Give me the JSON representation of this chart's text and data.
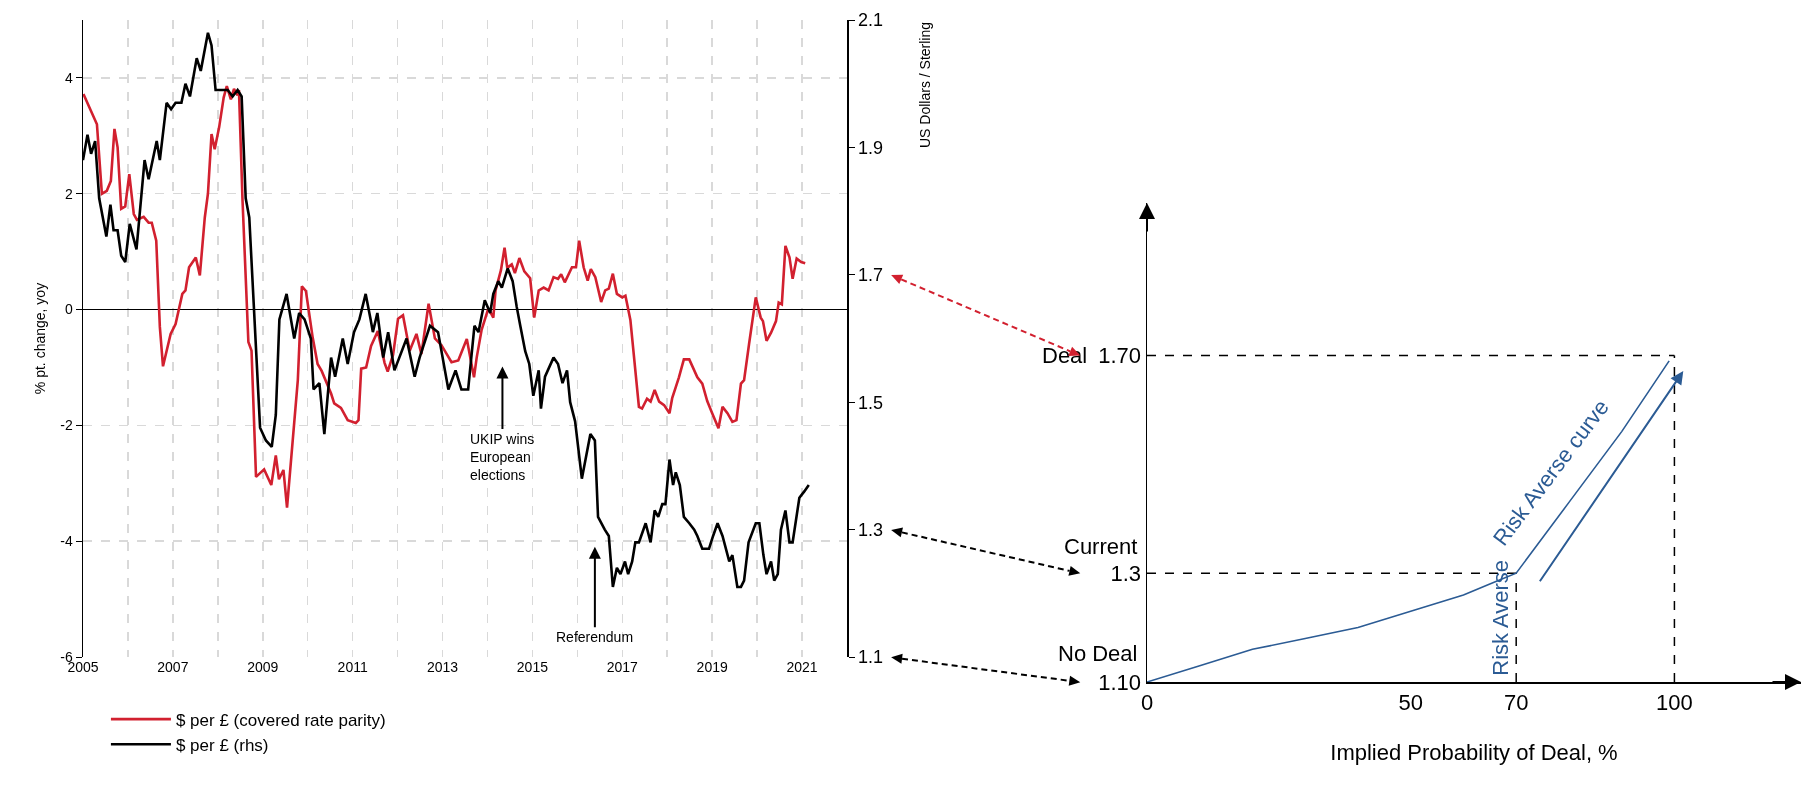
{
  "chart_data": [
    {
      "type": "line",
      "ylabel": "% pt. change, yoy",
      "y2label": "US Dollars / Sterling",
      "xlim": [
        2005,
        2022
      ],
      "xticks": [
        2005,
        {
          "value": 2006,
          "label": null
        },
        2007,
        {
          "value": 2008,
          "label": null
        },
        2009,
        {
          "value": 2010,
          "label": null
        },
        2011,
        {
          "value": 2012,
          "label": null
        },
        2013,
        {
          "value": 2014,
          "label": null
        },
        2015,
        {
          "value": 2016,
          "label": null
        },
        2017,
        {
          "value": 2018,
          "label": null
        },
        2019,
        {
          "value": 2020,
          "label": null
        },
        2021
      ],
      "ylim": [
        -6,
        5
      ],
      "yticks": [
        -6,
        -4,
        -2,
        0,
        2,
        4
      ],
      "y2lim": [
        1.1,
        2.1
      ],
      "y2ticks": [
        1.1,
        1.3,
        1.5,
        1.7,
        1.9,
        2.1
      ],
      "grid": true,
      "legend": "bottom",
      "series": [
        {
          "name": "$ per £ (covered rate parity)",
          "color": "#d2202f",
          "x": [
            2005.01,
            2005.31,
            2005.42,
            2005.53,
            2005.62,
            2005.7,
            2005.77,
            2005.85,
            2005.94,
            2006.03,
            2006.13,
            2006.2,
            2006.35,
            2006.46,
            2006.53,
            2006.63,
            2006.71,
            2006.78,
            2006.95,
            2007.06,
            2007.21,
            2007.28,
            2007.36,
            2007.51,
            2007.6,
            2007.71,
            2007.78,
            2007.86,
            2007.93,
            2008.03,
            2008.13,
            2008.2,
            2008.29,
            2008.36,
            2008.44,
            2008.47,
            2008.55,
            2008.68,
            2008.75,
            2008.85,
            2009.03,
            2009.19,
            2009.29,
            2009.36,
            2009.46,
            2009.54,
            2009.78,
            2009.87,
            2009.96,
            2010.11,
            2010.22,
            2010.31,
            2010.52,
            2010.59,
            2010.74,
            2010.89,
            2011.07,
            2011.13,
            2011.19,
            2011.3,
            2011.41,
            2011.56,
            2011.71,
            2011.78,
            2011.9,
            2012.01,
            2012.12,
            2012.27,
            2012.42,
            2012.53,
            2012.69,
            2012.83,
            2012.98,
            2013.2,
            2013.35,
            2013.54,
            2013.7,
            2013.76,
            2013.87,
            2014.02,
            2014.13,
            2014.18,
            2014.3,
            2014.38,
            2014.44,
            2014.54,
            2014.61,
            2014.71,
            2014.82,
            2014.95,
            2015.04,
            2015.14,
            2015.25,
            2015.36,
            2015.47,
            2015.57,
            2015.64,
            2015.72,
            2015.88,
            2015.97,
            2016.04,
            2016.14,
            2016.23,
            2016.3,
            2016.4,
            2016.53,
            2016.62,
            2016.7,
            2016.79,
            2016.88,
            2017.0,
            2017.07,
            2017.18,
            2017.37,
            2017.44,
            2017.55,
            2017.63,
            2017.72,
            2017.82,
            2017.93,
            2018.05,
            2018.11,
            2018.19,
            2018.26,
            2018.37,
            2018.49,
            2018.67,
            2018.78,
            2018.89,
            2019.0,
            2019.14,
            2019.23,
            2019.34,
            2019.45,
            2019.54,
            2019.64,
            2019.71,
            2019.82,
            2019.97,
            2020.08,
            2020.13,
            2020.21,
            2020.31,
            2020.42,
            2020.48,
            2020.55,
            2020.63,
            2020.72,
            2020.79,
            2020.88,
            2020.98,
            2021.07
          ],
          "values": [
            3.72,
            3.2,
            2.0,
            2.05,
            2.22,
            3.12,
            2.8,
            1.74,
            1.78,
            2.34,
            1.65,
            1.55,
            1.6,
            1.5,
            1.5,
            1.19,
            -0.3,
            -0.98,
            -0.42,
            -0.25,
            0.27,
            0.33,
            0.73,
            0.9,
            0.59,
            1.59,
            2.0,
            3.03,
            2.77,
            3.15,
            3.66,
            3.86,
            3.63,
            3.81,
            3.7,
            3.79,
            1.88,
            -0.56,
            -0.71,
            -2.89,
            -2.76,
            -3.03,
            -2.52,
            -2.93,
            -2.77,
            -3.42,
            -1.22,
            0.4,
            0.32,
            -0.48,
            -0.94,
            -1.06,
            -1.45,
            -1.62,
            -1.7,
            -1.91,
            -1.96,
            -1.91,
            -1.02,
            -1.0,
            -0.63,
            -0.37,
            -0.92,
            -1.07,
            -0.78,
            -0.16,
            -0.1,
            -0.71,
            -0.42,
            -0.77,
            0.1,
            -0.5,
            -0.62,
            -0.91,
            -0.88,
            -0.51,
            -1.17,
            -0.83,
            -0.35,
            0.02,
            -0.14,
            0.33,
            0.68,
            1.07,
            0.72,
            0.78,
            0.63,
            0.89,
            0.66,
            0.54,
            -0.14,
            0.33,
            0.38,
            0.33,
            0.56,
            0.53,
            0.61,
            0.47,
            0.73,
            0.73,
            1.19,
            0.73,
            0.5,
            0.7,
            0.56,
            0.13,
            0.33,
            0.36,
            0.62,
            0.27,
            0.21,
            0.24,
            -0.18,
            -1.68,
            -1.71,
            -1.54,
            -1.59,
            -1.39,
            -1.59,
            -1.65,
            -1.79,
            -1.53,
            -1.34,
            -1.17,
            -0.86,
            -0.86,
            -1.17,
            -1.28,
            -1.58,
            -1.79,
            -2.05,
            -1.68,
            -1.79,
            -1.94,
            -1.91,
            -1.28,
            -1.22,
            -0.6,
            0.21,
            -0.14,
            -0.2,
            -0.54,
            -0.4,
            -0.2,
            0.12,
            0.09,
            1.1,
            0.9,
            0.53,
            0.88,
            0.82,
            0.8
          ]
        },
        {
          "name": "$ per £ (rhs)",
          "color": "#000000",
          "axis": "y2",
          "x": [
            2005.0,
            2005.1,
            2005.18,
            2005.27,
            2005.36,
            2005.52,
            2005.61,
            2005.68,
            2005.77,
            2005.85,
            2005.94,
            2006.04,
            2006.19,
            2006.37,
            2006.46,
            2006.64,
            2006.71,
            2006.86,
            2006.96,
            2007.06,
            2007.19,
            2007.28,
            2007.38,
            2007.53,
            2007.62,
            2007.78,
            2007.86,
            2007.95,
            2008.03,
            2008.22,
            2008.33,
            2008.44,
            2008.53,
            2008.62,
            2008.7,
            2008.94,
            2009.07,
            2009.2,
            2009.29,
            2009.37,
            2009.53,
            2009.7,
            2009.81,
            2009.93,
            2010.07,
            2010.13,
            2010.26,
            2010.37,
            2010.52,
            2010.61,
            2010.78,
            2010.89,
            2011.03,
            2011.15,
            2011.29,
            2011.4,
            2011.45,
            2011.55,
            2011.68,
            2011.79,
            2011.93,
            2012.2,
            2012.38,
            2012.49,
            2012.72,
            2012.9,
            2013.13,
            2013.29,
            2013.42,
            2013.57,
            2013.71,
            2013.8,
            2013.94,
            2014.06,
            2014.13,
            2014.24,
            2014.32,
            2014.45,
            2014.56,
            2014.65,
            2014.73,
            2014.84,
            2014.93,
            2015.02,
            2015.14,
            2015.19,
            2015.28,
            2015.47,
            2015.57,
            2015.67,
            2015.77,
            2015.84,
            2015.95,
            2016.1,
            2016.29,
            2016.39,
            2016.46,
            2016.61,
            2016.7,
            2016.79,
            2016.88,
            2016.96,
            2017.06,
            2017.13,
            2017.22,
            2017.29,
            2017.37,
            2017.52,
            2017.63,
            2017.72,
            2017.8,
            2017.89,
            2017.96,
            2018.05,
            2018.13,
            2018.19,
            2018.28,
            2018.37,
            2018.49,
            2018.6,
            2018.67,
            2018.78,
            2018.93,
            2019.02,
            2019.12,
            2019.23,
            2019.38,
            2019.45,
            2019.56,
            2019.64,
            2019.71,
            2019.81,
            2019.97,
            2020.05,
            2020.14,
            2020.21,
            2020.31,
            2020.38,
            2020.46,
            2020.53,
            2020.63,
            2020.72,
            2020.79,
            2020.94,
            2021.05,
            2021.15
          ],
          "values": [
            1.88,
            1.92,
            1.89,
            1.91,
            1.82,
            1.76,
            1.81,
            1.77,
            1.77,
            1.73,
            1.72,
            1.78,
            1.74,
            1.88,
            1.85,
            1.91,
            1.88,
            1.97,
            1.96,
            1.97,
            1.97,
            2.0,
            1.98,
            2.04,
            2.02,
            2.08,
            2.06,
            1.99,
            1.99,
            1.99,
            1.98,
            1.99,
            1.98,
            1.82,
            1.79,
            1.46,
            1.44,
            1.43,
            1.48,
            1.63,
            1.67,
            1.6,
            1.64,
            1.63,
            1.6,
            1.52,
            1.53,
            1.45,
            1.57,
            1.54,
            1.6,
            1.56,
            1.61,
            1.63,
            1.67,
            1.63,
            1.61,
            1.64,
            1.57,
            1.61,
            1.55,
            1.6,
            1.54,
            1.57,
            1.62,
            1.61,
            1.52,
            1.55,
            1.52,
            1.52,
            1.62,
            1.61,
            1.66,
            1.64,
            1.67,
            1.69,
            1.68,
            1.71,
            1.69,
            1.65,
            1.62,
            1.58,
            1.56,
            1.51,
            1.55,
            1.49,
            1.54,
            1.57,
            1.56,
            1.53,
            1.55,
            1.5,
            1.47,
            1.38,
            1.45,
            1.44,
            1.32,
            1.3,
            1.29,
            1.21,
            1.24,
            1.23,
            1.25,
            1.23,
            1.25,
            1.28,
            1.28,
            1.31,
            1.28,
            1.33,
            1.32,
            1.34,
            1.34,
            1.41,
            1.37,
            1.39,
            1.37,
            1.32,
            1.31,
            1.3,
            1.29,
            1.27,
            1.27,
            1.29,
            1.31,
            1.29,
            1.25,
            1.26,
            1.21,
            1.21,
            1.22,
            1.28,
            1.31,
            1.31,
            1.26,
            1.23,
            1.25,
            1.22,
            1.23,
            1.3,
            1.33,
            1.28,
            1.28,
            1.35,
            1.36,
            1.37
          ]
        }
      ],
      "annotations": [
        "UKIP wins\nEuropean\nelections",
        "Referendum"
      ]
    },
    {
      "type": "line",
      "xlabel": "Implied Probability of Deal, %",
      "xlim": [
        0,
        124
      ],
      "xticks": [
        0,
        50,
        70,
        100
      ],
      "ylim": [
        1.1,
        1.98
      ],
      "yticks": [
        {
          "value": 1.1,
          "label": "1.10"
        },
        1.3,
        {
          "value": 1.7,
          "label": "1.70"
        }
      ],
      "series": [
        {
          "color": "#2b5b94",
          "x": [
            0,
            10,
            20,
            30,
            40,
            50,
            60,
            65,
            70,
            80,
            90,
            99
          ],
          "values": [
            1.1,
            1.13,
            1.16,
            1.18,
            1.2,
            1.23,
            1.26,
            1.28,
            1.3,
            1.43,
            1.56,
            1.69
          ]
        }
      ],
      "ref_lines": [
        {
          "axis": "y",
          "value": 1.7,
          "label": "Deal",
          "color": "#000000",
          "line_style": "dashed"
        },
        {
          "axis": "y",
          "value": 1.3,
          "label": "Current",
          "color": "#000000",
          "line_style": "dashed"
        },
        {
          "axis": "x",
          "value": 70,
          "label": "Risk Averse",
          "color": "#000000",
          "line_style": "dashed"
        },
        {
          "axis": "x",
          "value": 100,
          "color": "#000000",
          "line_style": "dashed"
        }
      ],
      "annotations": [
        {
          "text": "Risk Averse curve",
          "x": 80,
          "y": 1.43
        },
        {
          "text": "No Deal",
          "x": 0,
          "y": 1.1
        }
      ]
    }
  ]
}
